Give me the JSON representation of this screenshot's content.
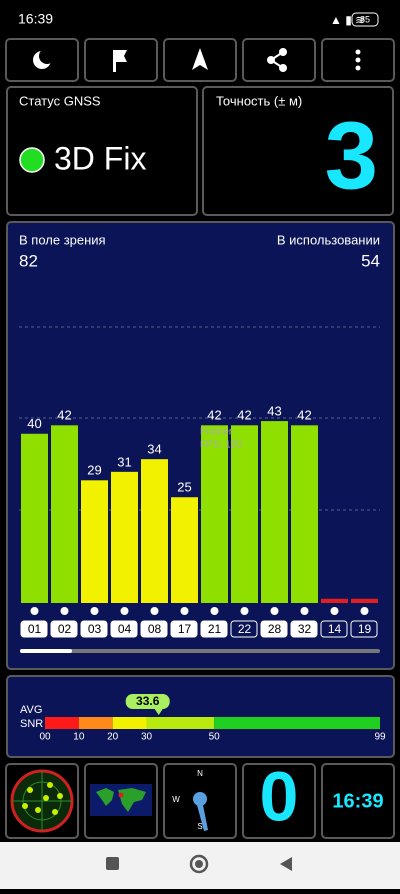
{
  "status_bar": {
    "time": "16:39",
    "battery": "85"
  },
  "gnss_status": {
    "label": "Статус GNSS",
    "value": "3D Fix"
  },
  "accuracy": {
    "label": "Точность (± м)",
    "value": 3
  },
  "satellites": {
    "in_view_label": "В поле зрения",
    "in_view": 82,
    "in_use_label": "В использовании",
    "in_use": 54
  },
  "chart_data": {
    "type": "bar",
    "categories": [
      "01",
      "02",
      "03",
      "04",
      "08",
      "17",
      "21",
      "22",
      "28",
      "32",
      "14",
      "19"
    ],
    "values": [
      40,
      42,
      29,
      31,
      34,
      25,
      42,
      42,
      43,
      42,
      1,
      1
    ],
    "value_labels": [
      "40",
      "42",
      "29",
      "31",
      "34",
      "25",
      "42",
      "42",
      "43",
      "42",
      null,
      null
    ],
    "colors": [
      "#8fe000",
      "#8fe000",
      "#f2f200",
      "#f2f200",
      "#f2f200",
      "#f2f200",
      "#8fe000",
      "#8fe000",
      "#8fe000",
      "#8fe000",
      "#e02020",
      "#e02020"
    ],
    "used": [
      true,
      true,
      true,
      true,
      true,
      true,
      true,
      false,
      true,
      true,
      false,
      false
    ],
    "ylim": [
      0,
      65
    ],
    "overlay": [
      "Framer",
      "FPS: 120"
    ]
  },
  "snr": {
    "label_top": "AVG",
    "label_bottom": "SNR",
    "average": 33.6,
    "lim": [
      0,
      99
    ],
    "ticks": [
      {
        "value": 0,
        "label": "00"
      },
      10,
      20,
      30,
      50,
      99
    ],
    "segments": [
      {
        "from": 0,
        "to": 10,
        "color": "#ff1a1a"
      },
      {
        "from": 10,
        "to": 20,
        "color": "#ff8a1a"
      },
      {
        "from": 20,
        "to": 30,
        "color": "#f2f200"
      },
      {
        "from": 30,
        "to": 50,
        "color": "#b8ea10"
      },
      {
        "from": 50,
        "to": 99,
        "color": "#20d020"
      }
    ]
  },
  "bottom": {
    "compass": {
      "n": "N",
      "w": "W",
      "s": "S"
    },
    "counter": 0,
    "clock": "16:39"
  }
}
